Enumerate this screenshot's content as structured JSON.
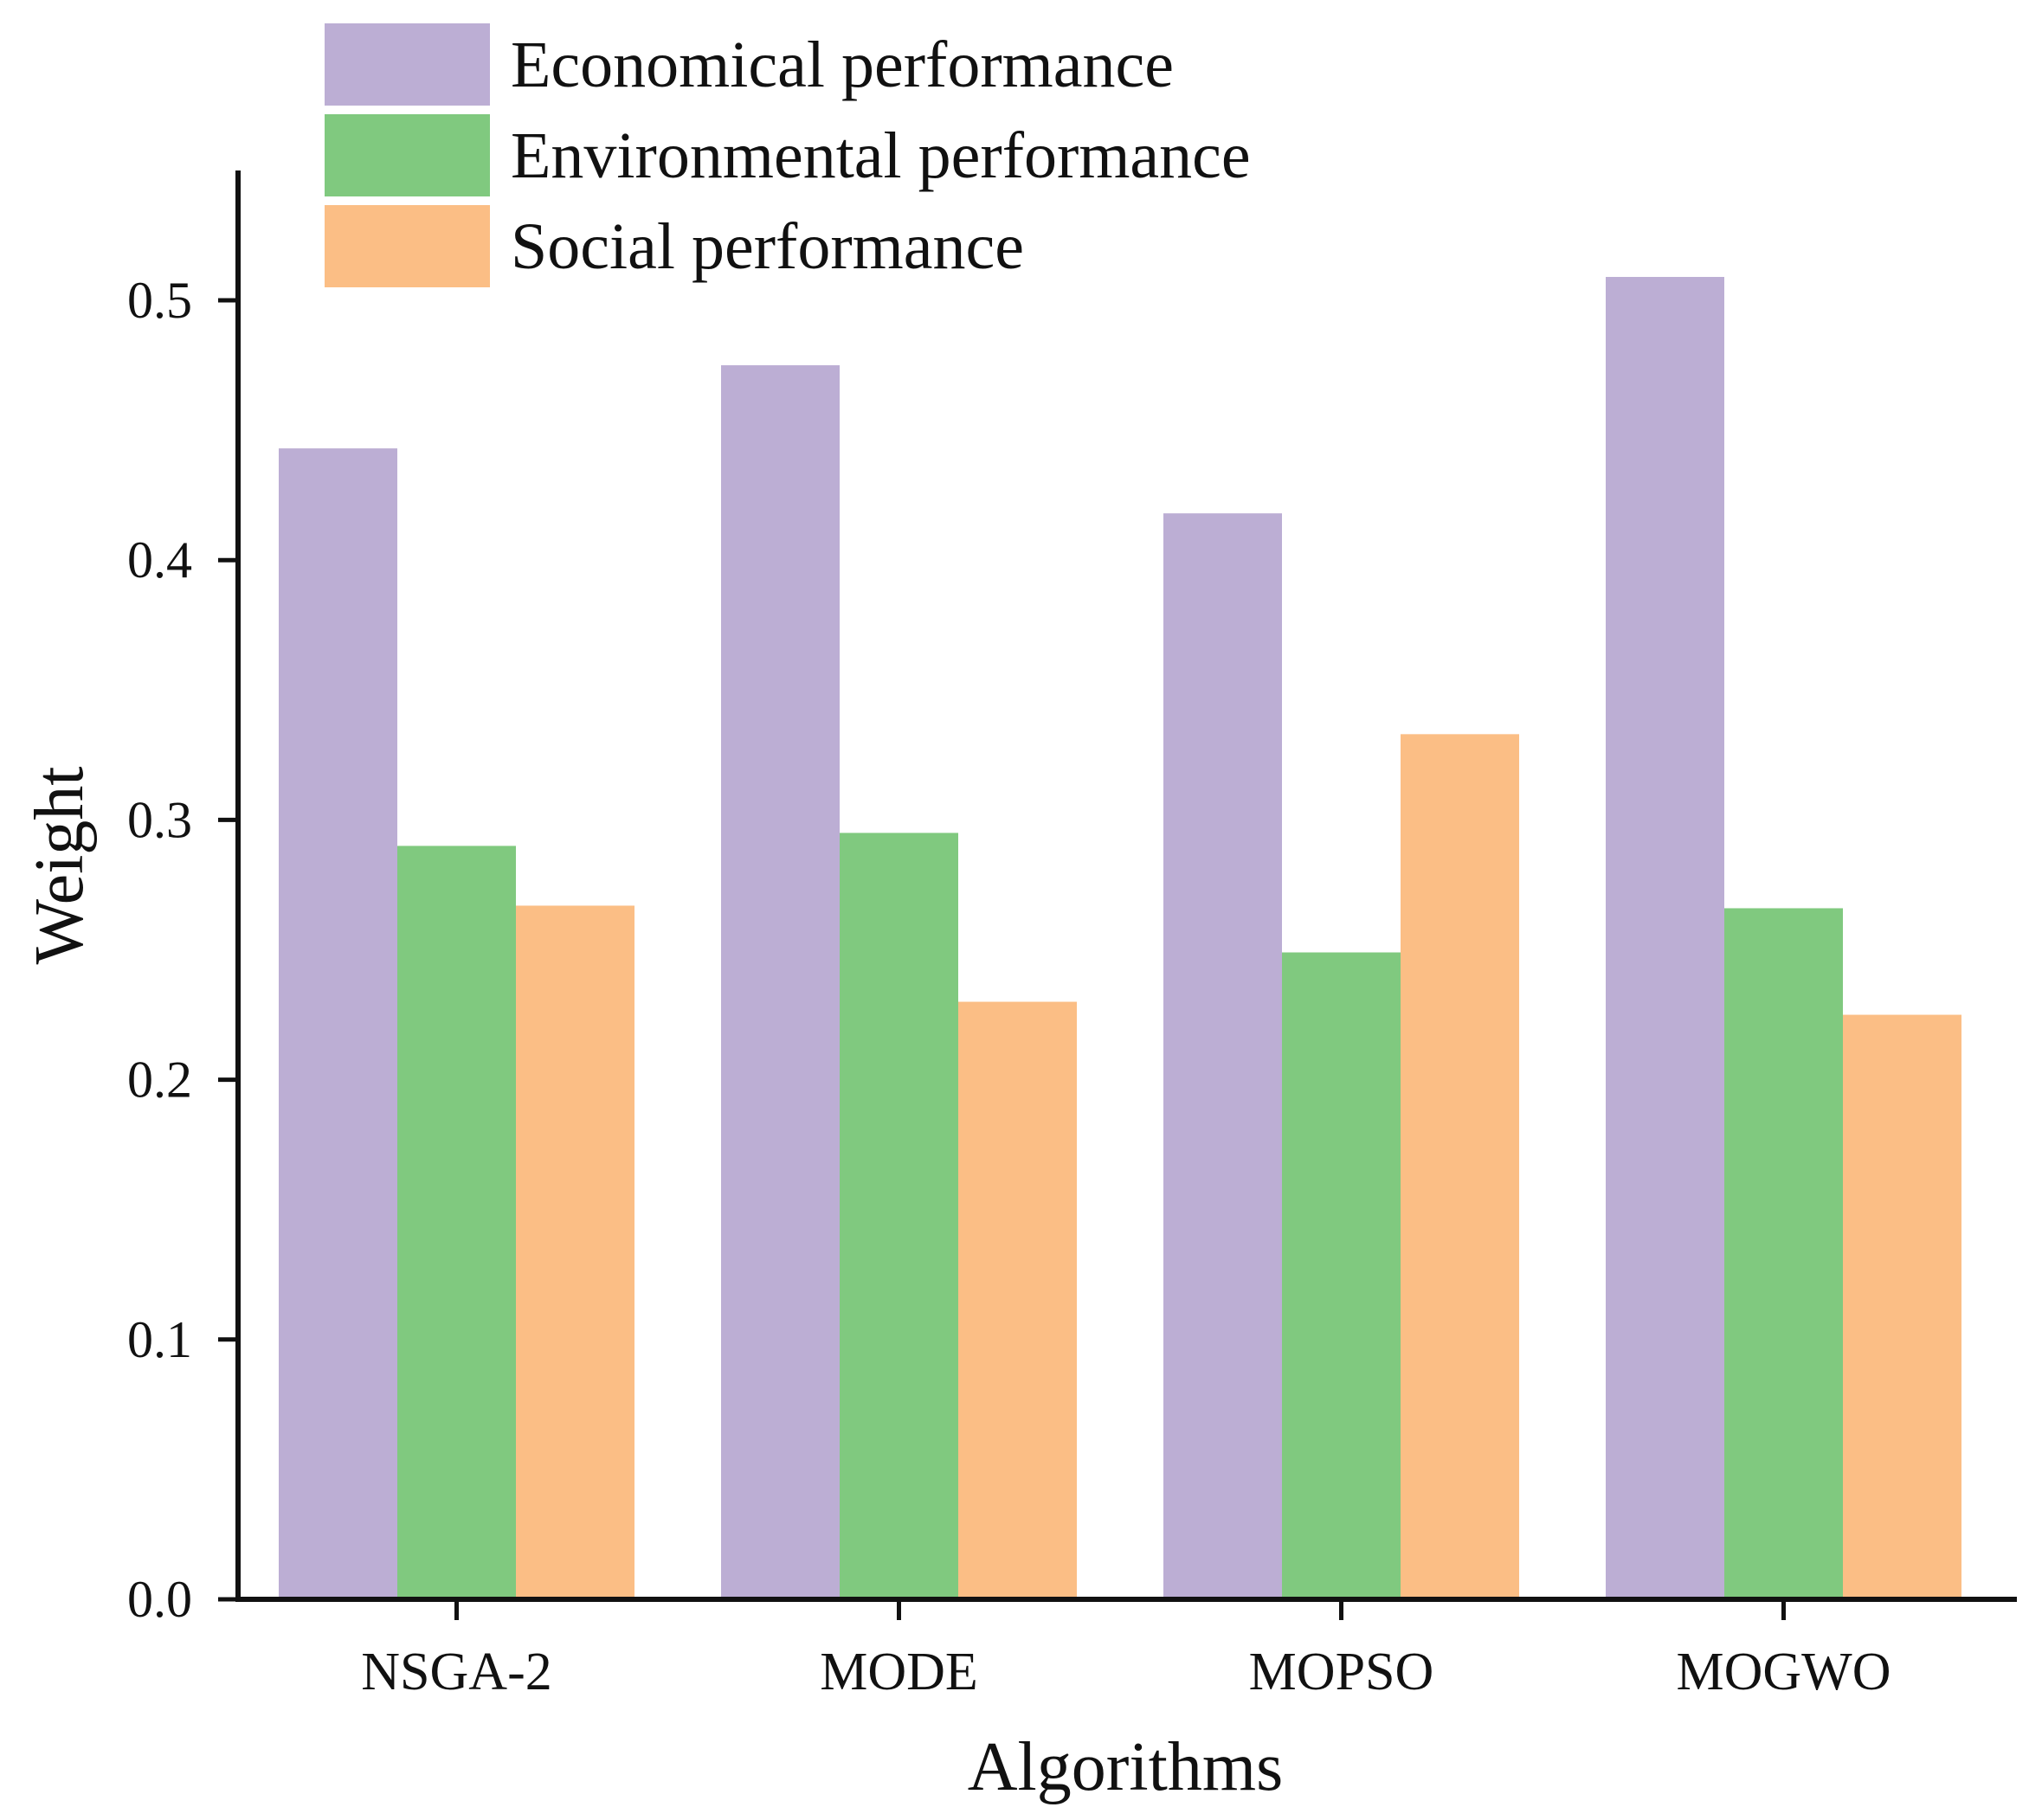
{
  "chart_data": {
    "type": "bar",
    "title": "",
    "xlabel": "Algorithms",
    "ylabel": "Weight",
    "categories": [
      "NSGA-2",
      "MODE",
      "MOPSO",
      "MOGWO"
    ],
    "series": [
      {
        "name": "Economical performance",
        "color": "#bcaed4",
        "values": [
          0.443,
          0.475,
          0.418,
          0.509
        ]
      },
      {
        "name": "Environmental performance",
        "color": "#80c97f",
        "values": [
          0.29,
          0.295,
          0.249,
          0.266
        ]
      },
      {
        "name": "Social performance",
        "color": "#fbbe85",
        "values": [
          0.267,
          0.23,
          0.333,
          0.225
        ]
      }
    ],
    "ylim": [
      0,
      0.55
    ],
    "yticks": [
      "0.0",
      "0.1",
      "0.2",
      "0.3",
      "0.4",
      "0.5"
    ],
    "grid": false,
    "legend_position": "top-left"
  }
}
